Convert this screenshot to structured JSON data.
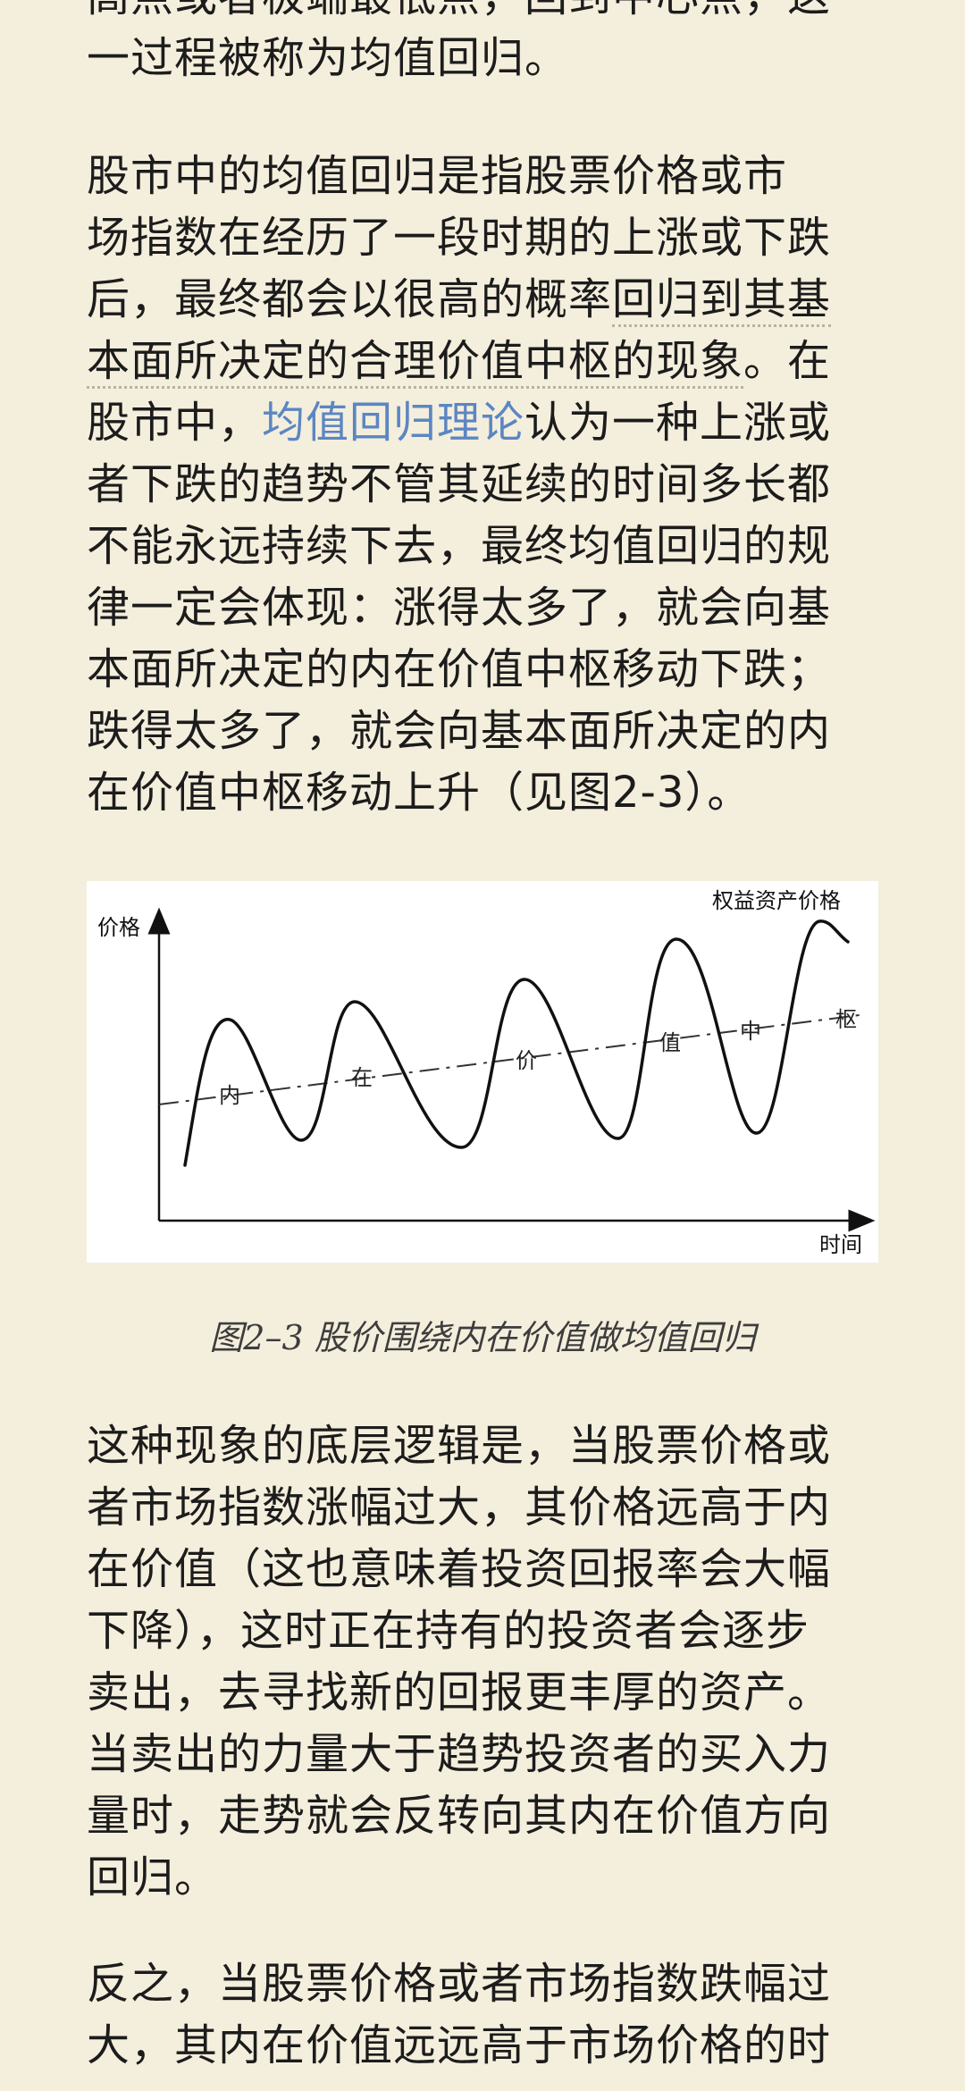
{
  "paragraphs": {
    "top": {
      "lines": [
        "高点或者极端最低点，回到中心点，这",
        "一过程被称为均值回归。"
      ]
    },
    "mean_reversion": {
      "lines": [
        "股市中的均值回归是指股票价格或市",
        "场指数在经历了一段时期的上涨或下跌",
        "后，最终都会以很高的概率回归到其基",
        "本面所决定的合理价值中枢的现象。在",
        "股市中，",
        "均值回归理论",
        "认为一种上涨或",
        "者下跌的趋势不管其延续的时间多长都",
        "不能永远持续下去，最终均值回归的规",
        "律一定会体现：涨得太多了，就会向基",
        "本面所决定的内在价值中枢移动下跌；",
        "跌得太多了，就会向基本面所决定的内",
        "在价值中枢移动上升（见图2-3）。"
      ]
    },
    "logic": {
      "lines": [
        "这种现象的底层逻辑是，当股票价格或",
        "者市场指数涨幅过大，其价格远高于内",
        "在价值（这也意味着投资回报率会大幅",
        "下降），这时正在持有的投资者会逐步",
        "卖出，去寻找新的回报更丰厚的资产。",
        "当卖出的力量大于趋势投资者的买入力",
        "量时，走势就会反转向其内在价值方向",
        "回归。"
      ]
    },
    "inverse": {
      "lines": [
        "反之，当股票价格或者市场指数跌幅过",
        "大，其内在价值远远高于市场价格的时"
      ]
    }
  },
  "figure": {
    "y_axis_label": "价格",
    "x_axis_label": "时间",
    "curve_label": "权益资产价格",
    "center_labels": [
      "内",
      "在",
      "价",
      "值",
      "中",
      "枢"
    ],
    "caption": "图2–3 股价围绕内在价值做均值回归"
  },
  "colors": {
    "background": "#f4eedc",
    "text": "#1c1c1c",
    "link": "#5b86c2"
  }
}
